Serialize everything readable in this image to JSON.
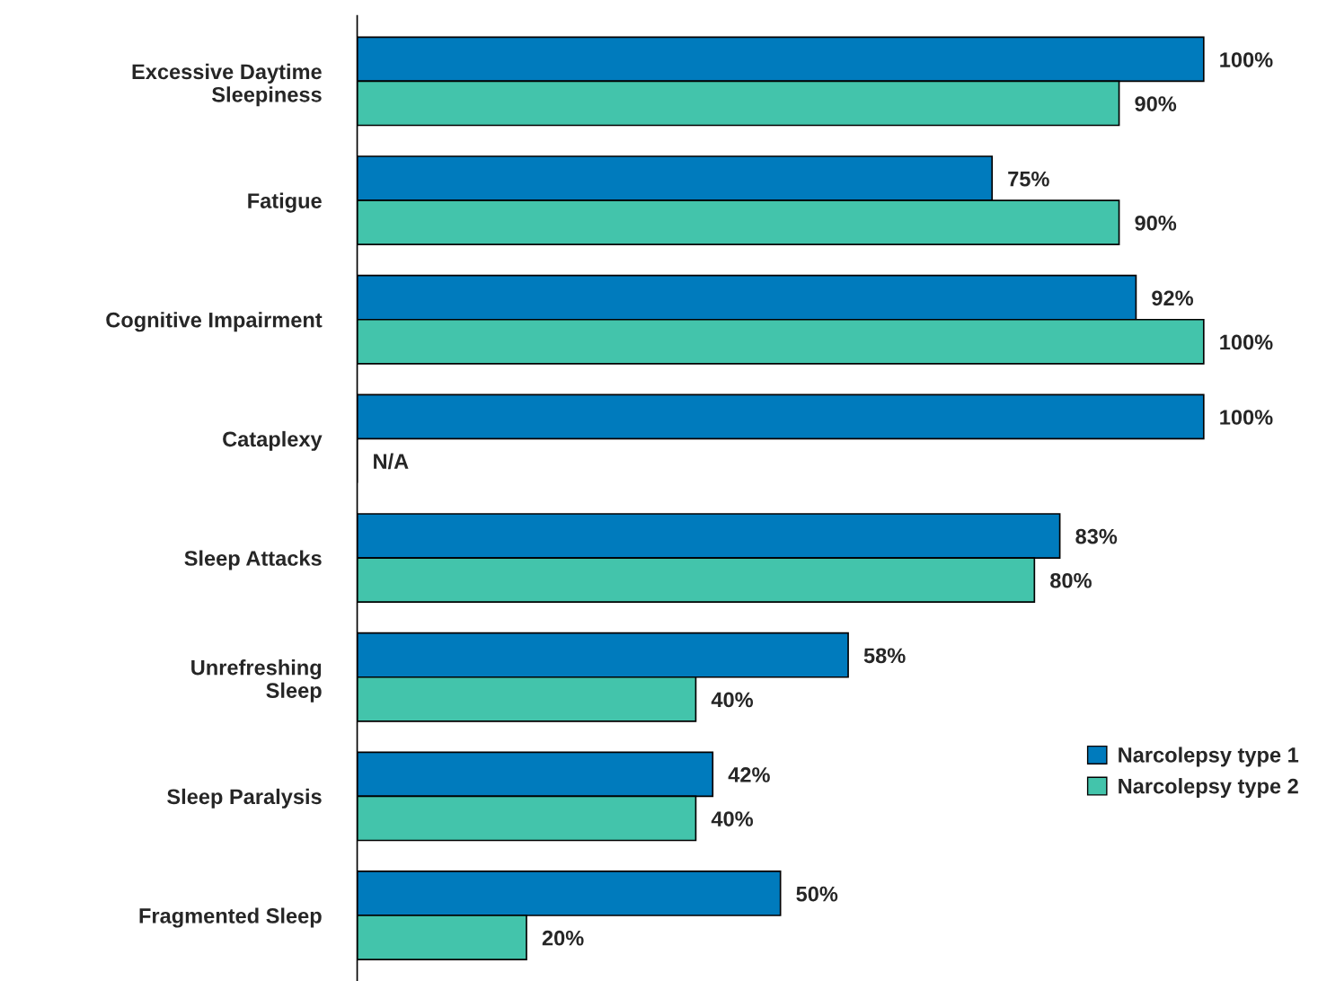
{
  "chart_data": {
    "type": "bar",
    "orientation": "horizontal",
    "legend": "bottom right",
    "categories": [
      "Excessive Daytime\nSleepiness",
      "Fatigue",
      "Cognitive Impairment",
      "Cataplexy",
      "Sleep Attacks",
      "Unrefreshing\nSleep",
      "Sleep Paralysis",
      "Fragmented Sleep"
    ],
    "series": [
      {
        "name": "Narcolepsy type 1",
        "color": "#007bbd",
        "values": [
          100,
          75,
          92,
          100,
          83,
          58,
          42,
          50
        ],
        "value_labels": [
          "100%",
          "75%",
          "92%",
          "100%",
          "83%",
          "58%",
          "42%",
          "50%"
        ]
      },
      {
        "name": "Narcolepsy type 2",
        "color": "#43c4ab",
        "values": [
          90,
          90,
          100,
          null,
          80,
          40,
          40,
          20
        ],
        "value_labels": [
          "90%",
          "90%",
          "100%",
          "N/A",
          "80%",
          "40%",
          "40%",
          "20%"
        ]
      }
    ]
  }
}
